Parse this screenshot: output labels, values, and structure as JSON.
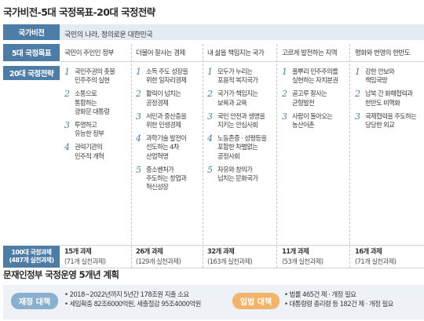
{
  "title": "국가비전-5대 국정목표-20대 국정전략",
  "vision": {
    "label": "국가비전",
    "text": "국민의 나라, 정의로운 대한민국"
  },
  "goals_label": "5대 국정목표",
  "strategies_label": "20대 국정전략",
  "tasks_label": {
    "line1": "100대 국정과제",
    "line2": "(487개 실천과제)"
  },
  "columns": [
    {
      "goal": "국민이 주인인 정부",
      "strategies": [
        {
          "num": "1",
          "lines": [
            "국민주권의 촛불",
            "민주주의 실현"
          ]
        },
        {
          "num": "2",
          "lines": [
            "소통으로",
            "통합하는",
            "광화문 대통령"
          ]
        },
        {
          "num": "3",
          "lines": [
            "투명하고",
            "유능한 정부"
          ]
        },
        {
          "num": "4",
          "lines": [
            "권력기관의",
            "민주적 개혁"
          ]
        }
      ],
      "tasks": "15개 과제",
      "sub_tasks": "(71개 실천과제)"
    },
    {
      "goal": "더불어 잘사는 경제",
      "strategies": [
        {
          "num": "1",
          "lines": [
            "소득 주도 성장을",
            "위한 일자리경제"
          ]
        },
        {
          "num": "2",
          "lines": [
            "활력이 넘치는",
            "공정경제"
          ]
        },
        {
          "num": "3",
          "lines": [
            "서민과 중산층을",
            "위한 민생경제"
          ]
        },
        {
          "num": "4",
          "lines": [
            "과학기술 발전이",
            "선도하는 4차",
            "산업혁명"
          ]
        },
        {
          "num": "5",
          "lines": [
            "중소벤처가",
            "주도하는 창업과",
            "혁신성장"
          ]
        }
      ],
      "tasks": "26개 과제",
      "sub_tasks": "(129개 실천과제)"
    },
    {
      "goal": "내 삶을 책임지는 국가",
      "strategies": [
        {
          "num": "1",
          "lines": [
            "모두가 누리는",
            "포용적 복지국가"
          ]
        },
        {
          "num": "2",
          "lines": [
            "국가가 책임지는",
            "보육과 교육"
          ]
        },
        {
          "num": "3",
          "lines": [
            "국민 안전과 생명을",
            "지키는 안심사회"
          ]
        },
        {
          "num": "4",
          "lines": [
            "노동존중 · 성평등을",
            "포함한 차별없는",
            "공정사회"
          ]
        },
        {
          "num": "5",
          "lines": [
            "자유와 창의가",
            "넘치는 문화국가"
          ]
        }
      ],
      "tasks": "32개 과제",
      "sub_tasks": "(163개 실천과제)"
    },
    {
      "goal": "고르게 발전하는 지역",
      "strategies": [
        {
          "num": "1",
          "lines": [
            "풀뿌리 민주주의를",
            "실현하는 자치분권"
          ]
        },
        {
          "num": "2",
          "lines": [
            "골고루 잘사는",
            "균형발전"
          ]
        },
        {
          "num": "3",
          "lines": [
            "사람이 돌아오는",
            "농산어촌"
          ]
        }
      ],
      "tasks": "11개 과제",
      "sub_tasks": "(53개 실천과제)"
    },
    {
      "goal": "평화와 번영의 한반도",
      "strategies": [
        {
          "num": "1",
          "lines": [
            "강한 안보와",
            "책임국방"
          ]
        },
        {
          "num": "2",
          "lines": [
            "남북 간 화해협력과",
            "한반도 비핵화"
          ]
        },
        {
          "num": "3",
          "lines": [
            "국제협력을 주도하는",
            "당당한 외교"
          ]
        }
      ],
      "tasks": "16개 과제",
      "sub_tasks": "(71개 실천과제)"
    }
  ],
  "plan": {
    "title": "문재인정부 국정운영 5개년 계획",
    "finance_label": "재정 대책",
    "finance_items": [
      "2018~2022년까지 5년간 178조원 지출 소요",
      "세입확충 82조6000억원, 세출절감 95조4000억원"
    ],
    "legislation_label": "입법 대책",
    "legislation_items": [
      "법률 465건 제 · 개정 필요",
      "대통령령 총리령 등 182건 제 · 개정 필요"
    ]
  }
}
